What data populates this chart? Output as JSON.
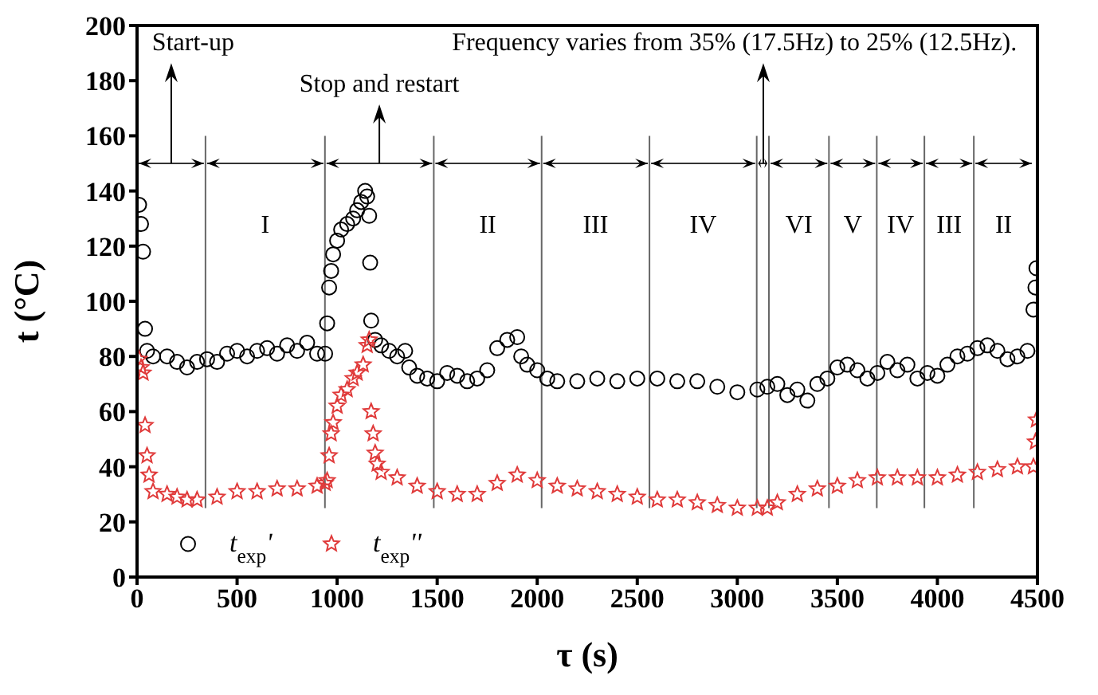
{
  "chart_data": {
    "type": "scatter",
    "xlabel": "τ (s)",
    "ylabel": "t (°C)",
    "xlim": [
      0,
      4500
    ],
    "xticks": [
      0,
      500,
      1000,
      1500,
      2000,
      2500,
      3000,
      3500,
      4000,
      4500
    ],
    "ylim": [
      0,
      200
    ],
    "yticks": [
      0,
      20,
      40,
      60,
      80,
      100,
      120,
      140,
      160,
      180,
      200
    ],
    "grid": false,
    "legend": "bottom left",
    "series": [
      {
        "name": "t$_{exp}$'",
        "color": "#000000",
        "marker": "circle",
        "x": [
          10,
          20,
          30,
          40,
          50,
          80,
          150,
          200,
          250,
          300,
          350,
          400,
          450,
          500,
          550,
          600,
          650,
          700,
          750,
          800,
          850,
          900,
          940,
          950,
          960,
          970,
          980,
          1000,
          1020,
          1050,
          1080,
          1100,
          1120,
          1140,
          1150,
          1160,
          1165,
          1170,
          1190,
          1220,
          1260,
          1300,
          1340,
          1360,
          1400,
          1450,
          1500,
          1550,
          1600,
          1650,
          1700,
          1750,
          1800,
          1850,
          1900,
          1920,
          1950,
          2000,
          2050,
          2100,
          2200,
          2300,
          2400,
          2500,
          2600,
          2700,
          2800,
          2900,
          3000,
          3100,
          3150,
          3200,
          3250,
          3300,
          3350,
          3400,
          3450,
          3500,
          3550,
          3600,
          3650,
          3700,
          3750,
          3800,
          3850,
          3900,
          3950,
          4000,
          4050,
          4100,
          4150,
          4200,
          4250,
          4300,
          4350,
          4400,
          4450,
          4480,
          4490,
          4495
        ],
        "values": [
          135,
          128,
          118,
          90,
          82,
          80,
          80,
          78,
          76,
          78,
          79,
          78,
          81,
          82,
          80,
          82,
          83,
          81,
          84,
          82,
          85,
          81,
          81,
          92,
          105,
          111,
          117,
          122,
          126,
          128,
          130,
          133,
          136,
          140,
          138,
          131,
          114,
          93,
          86,
          84,
          82,
          80,
          82,
          76,
          73,
          72,
          71,
          74,
          73,
          71,
          72,
          75,
          83,
          86,
          87,
          80,
          77,
          75,
          72,
          71,
          71,
          72,
          71,
          72,
          72,
          71,
          71,
          69,
          67,
          68,
          69,
          70,
          66,
          68,
          64,
          70,
          72,
          76,
          77,
          75,
          72,
          74,
          78,
          75,
          77,
          72,
          74,
          73,
          77,
          80,
          81,
          83,
          84,
          82,
          79,
          80,
          82,
          97,
          105,
          112
        ]
      },
      {
        "name": "t$_{exp}$''",
        "color": "#e03a3a",
        "marker": "star",
        "x": [
          10,
          20,
          30,
          40,
          50,
          60,
          80,
          150,
          200,
          250,
          300,
          400,
          500,
          600,
          700,
          800,
          900,
          940,
          950,
          960,
          970,
          980,
          1000,
          1020,
          1050,
          1080,
          1100,
          1130,
          1150,
          1160,
          1170,
          1180,
          1190,
          1200,
          1220,
          1300,
          1400,
          1500,
          1600,
          1700,
          1800,
          1900,
          2000,
          2100,
          2200,
          2300,
          2400,
          2500,
          2600,
          2700,
          2800,
          2900,
          3000,
          3100,
          3150,
          3200,
          3300,
          3400,
          3500,
          3600,
          3700,
          3800,
          3900,
          4000,
          4100,
          4200,
          4300,
          4400,
          4480,
          4490,
          4495
        ],
        "values": [
          79,
          76,
          74,
          55,
          44,
          37,
          31,
          30,
          29,
          28,
          28,
          29,
          31,
          31,
          32,
          32,
          33,
          34,
          35,
          44,
          52,
          56,
          62,
          66,
          68,
          72,
          74,
          77,
          84,
          86,
          60,
          52,
          45,
          41,
          38,
          36,
          33,
          31,
          30,
          30,
          34,
          37,
          35,
          33,
          32,
          31,
          30,
          29,
          28,
          28,
          27,
          26,
          25,
          25,
          25,
          27,
          30,
          32,
          33,
          35,
          36,
          36,
          36,
          36,
          37,
          38,
          39,
          40,
          40,
          49,
          57
        ]
      }
    ],
    "ref_lines": [
      {
        "axis": "x",
        "value": 342
      },
      {
        "axis": "x",
        "value": 939
      },
      {
        "axis": "x",
        "value": 1483
      },
      {
        "axis": "x",
        "value": 2022
      },
      {
        "axis": "x",
        "value": 2561
      },
      {
        "axis": "x",
        "value": 3097
      },
      {
        "axis": "x",
        "value": 3158
      },
      {
        "axis": "x",
        "value": 3458
      },
      {
        "axis": "x",
        "value": 3697
      },
      {
        "axis": "x",
        "value": 3935
      },
      {
        "axis": "x",
        "value": 4182
      }
    ],
    "annotations": [
      "Start-up",
      "I",
      "Stop and restart",
      "II",
      "III",
      "IV",
      {
        "text": "Frequency varies from 35% (17.5Hz) to 25% (12.5Hz).",
        "x": 3130,
        "y": 150
      },
      "VI",
      "V",
      "IV",
      "III",
      "II"
    ]
  }
}
